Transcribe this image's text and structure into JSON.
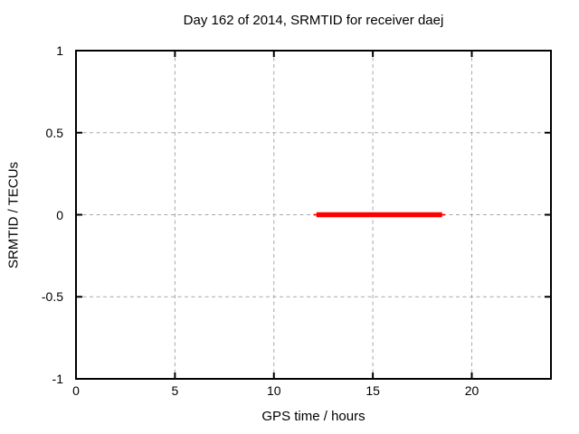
{
  "chart_data": {
    "type": "line",
    "title": "Day 162 of 2014, SRMTID for receiver daej",
    "xlabel": "GPS time / hours",
    "ylabel": "SRMTID / TECUs",
    "xlim": [
      0,
      24
    ],
    "ylim": [
      -1,
      1
    ],
    "xticks": [
      0,
      5,
      10,
      15,
      20
    ],
    "xtick_labels": [
      "0",
      "5",
      "10",
      "15",
      "20"
    ],
    "yticks": [
      1,
      0.5,
      0,
      -0.5,
      -1
    ],
    "ytick_labels": [
      "1",
      "0.5",
      "0",
      "-0.5",
      "-1"
    ],
    "grid": true,
    "legend_position": "none",
    "colors": {
      "background": "#ffffff",
      "border": "#000000",
      "grid": "#a8a8a8",
      "text": "#000000",
      "series": "#ff0000"
    },
    "series": [
      {
        "name": "SRMTID",
        "color": "#ff0000",
        "style": "thick-horizontal-segment",
        "points": [
          [
            12.0,
            0
          ],
          [
            18.65,
            0
          ]
        ],
        "thick_core_x": [
          12.15,
          18.5
        ],
        "constant_y_value": 0
      }
    ]
  }
}
